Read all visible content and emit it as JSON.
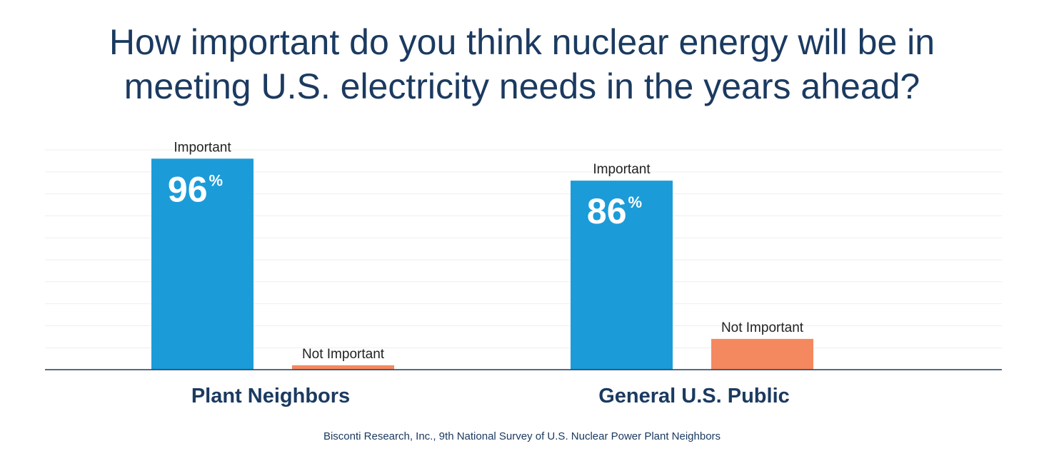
{
  "chart_data": {
    "type": "bar",
    "title_lines": [
      "How important do you think nuclear energy will be in",
      "meeting U.S. electricity needs in the years ahead?"
    ],
    "categories": [
      "Plant Neighbors",
      "General U.S. Public"
    ],
    "series": [
      {
        "name": "Important",
        "values": [
          96,
          86
        ],
        "color": "#1b9cd8"
      },
      {
        "name": "Not Important",
        "values": [
          2,
          14
        ],
        "color": "#f4895f"
      }
    ],
    "data_labels": [
      {
        "category": "Plant Neighbors",
        "series": "Important",
        "value_text": "96",
        "unit": "%"
      },
      {
        "category": "General U.S. Public",
        "series": "Important",
        "value_text": "86",
        "unit": "%"
      }
    ],
    "ylim": [
      0,
      100
    ],
    "grid": true,
    "xlabel": "",
    "ylabel": "",
    "source": "Bisconti Research, Inc., 9th National Survey of U.S. Nuclear Power Plant Neighbors"
  },
  "colors": {
    "title": "#1b3a60",
    "axis": "#1b3a60",
    "grid": "#eeeeee"
  }
}
